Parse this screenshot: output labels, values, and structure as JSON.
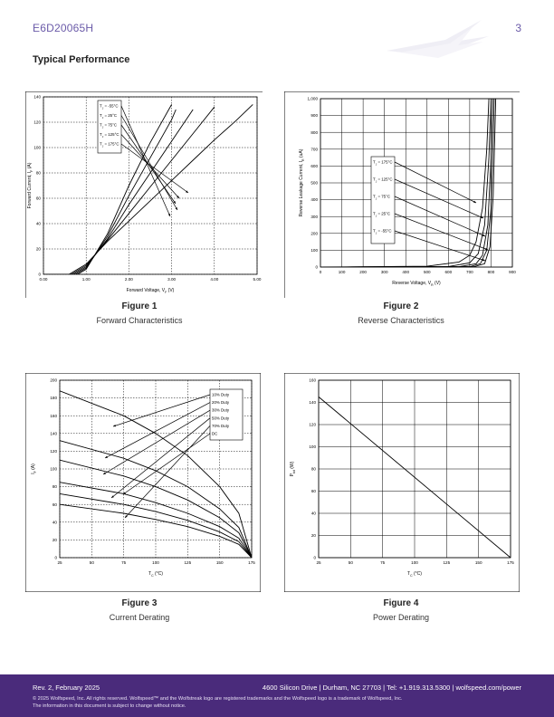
{
  "header": {
    "part_number": "E6D20065H",
    "page_number": "3"
  },
  "section_title": "Typical Performance",
  "figures": [
    {
      "title": "Figure 1",
      "subtitle": "Forward Characteristics"
    },
    {
      "title": "Figure 2",
      "subtitle": "Reverse Characteristics"
    },
    {
      "title": "Figure 3",
      "subtitle": "Current Derating"
    },
    {
      "title": "Figure 4",
      "subtitle": "Power Derating"
    }
  ],
  "chart_data": [
    {
      "type": "line",
      "xlabel": "Forward Voltage, V_F (V)",
      "ylabel": "Forward Current, I_F (A)",
      "xlim": [
        0,
        5
      ],
      "ylim": [
        0,
        140
      ],
      "xticks": [
        "0.00",
        "1.00",
        "2.00",
        "3.00",
        "4.00",
        "5.00"
      ],
      "yticks": [
        "0",
        "20",
        "40",
        "60",
        "80",
        "100",
        "120",
        "140"
      ],
      "series": [
        {
          "name": "T_J = -55°C",
          "x": [
            0.8,
            1.0,
            1.5,
            2.0,
            2.5,
            3.0
          ],
          "y": [
            0,
            4,
            32,
            70,
            104,
            134
          ]
        },
        {
          "name": "T_J = 25°C",
          "x": [
            0.75,
            1.0,
            1.5,
            2.0,
            2.5,
            3.0,
            3.1
          ],
          "y": [
            0,
            5,
            30,
            62,
            92,
            122,
            130
          ]
        },
        {
          "name": "T_J = 75°C",
          "x": [
            0.7,
            1.0,
            1.5,
            2.0,
            2.5,
            3.0,
            3.5
          ],
          "y": [
            0,
            6,
            28,
            55,
            80,
            105,
            130
          ]
        },
        {
          "name": "T_J = 125°C",
          "x": [
            0.65,
            1.0,
            1.5,
            2.0,
            2.5,
            3.0,
            3.5,
            4.0
          ],
          "y": [
            0,
            7,
            27,
            48,
            69,
            90,
            111,
            132
          ]
        },
        {
          "name": "T_J = 175°C",
          "x": [
            0.6,
            1.0,
            1.5,
            2.0,
            2.5,
            3.0,
            3.5,
            4.0,
            4.5,
            4.9
          ],
          "y": [
            0,
            8,
            26,
            42,
            58,
            74,
            90,
            106,
            121,
            134
          ]
        }
      ]
    },
    {
      "type": "line",
      "xlabel": "Reverse Voltage, V_R (V)",
      "ylabel": "Reverse Leakage Current, I_R (uA)",
      "xlim": [
        0,
        900
      ],
      "ylim": [
        0,
        1000
      ],
      "xticks": [
        "0",
        "100",
        "200",
        "300",
        "400",
        "500",
        "600",
        "700",
        "800",
        "900"
      ],
      "yticks": [
        "0",
        "100",
        "200",
        "300",
        "400",
        "500",
        "600",
        "700",
        "800",
        "900",
        "1,000"
      ],
      "series": [
        {
          "name": "T_J = 175°C",
          "x": [
            0,
            500,
            650,
            700,
            730,
            760,
            780,
            790
          ],
          "y": [
            0,
            5,
            30,
            70,
            150,
            350,
            700,
            1000
          ]
        },
        {
          "name": "T_J = 125°C",
          "x": [
            0,
            600,
            700,
            740,
            770,
            790,
            800
          ],
          "y": [
            0,
            3,
            25,
            80,
            250,
            650,
            1000
          ]
        },
        {
          "name": "T_J = 75°C",
          "x": [
            0,
            650,
            730,
            760,
            785,
            800,
            808
          ],
          "y": [
            0,
            2,
            20,
            70,
            250,
            650,
            1000
          ]
        },
        {
          "name": "T_J = 25°C",
          "x": [
            0,
            700,
            750,
            780,
            800,
            810,
            815
          ],
          "y": [
            0,
            2,
            20,
            100,
            350,
            750,
            1000
          ]
        },
        {
          "name": "T_J = -55°C",
          "x": [
            0,
            720,
            770,
            795,
            810,
            818,
            822
          ],
          "y": [
            0,
            2,
            20,
            120,
            420,
            800,
            1000
          ]
        }
      ]
    },
    {
      "type": "line",
      "xlabel": "T_C (°C)",
      "ylabel": "I_F (A)",
      "xlim": [
        25,
        175
      ],
      "ylim": [
        0,
        200
      ],
      "xticks": [
        "25",
        "50",
        "75",
        "100",
        "125",
        "150",
        "175"
      ],
      "yticks": [
        "0",
        "20",
        "40",
        "60",
        "80",
        "100",
        "120",
        "140",
        "160",
        "180",
        "200"
      ],
      "series": [
        {
          "name": "10% Duty",
          "x": [
            25,
            75,
            100,
            125,
            150,
            165,
            175
          ],
          "y": [
            188,
            160,
            140,
            115,
            80,
            50,
            0
          ]
        },
        {
          "name": "20% Duty",
          "x": [
            25,
            75,
            100,
            125,
            150,
            165,
            175
          ],
          "y": [
            132,
            112,
            98,
            80,
            55,
            34,
            0
          ]
        },
        {
          "name": "30% Duty",
          "x": [
            25,
            75,
            100,
            125,
            150,
            165,
            175
          ],
          "y": [
            110,
            92,
            80,
            65,
            45,
            28,
            0
          ]
        },
        {
          "name": "50% Duty",
          "x": [
            25,
            75,
            100,
            125,
            150,
            165,
            175
          ],
          "y": [
            85,
            72,
            62,
            50,
            35,
            22,
            0
          ]
        },
        {
          "name": "70% Duty",
          "x": [
            25,
            75,
            100,
            125,
            150,
            165,
            175
          ],
          "y": [
            72,
            60,
            52,
            42,
            29,
            18,
            0
          ]
        },
        {
          "name": "DC",
          "x": [
            25,
            75,
            100,
            125,
            150,
            165,
            175
          ],
          "y": [
            60,
            50,
            43,
            35,
            24,
            15,
            0
          ]
        }
      ]
    },
    {
      "type": "line",
      "xlabel": "T_C (°C)",
      "ylabel": "P_tot (W)",
      "xlim": [
        25,
        175
      ],
      "ylim": [
        0,
        160
      ],
      "xticks": [
        "25",
        "50",
        "75",
        "100",
        "125",
        "150",
        "175"
      ],
      "yticks": [
        "0",
        "20",
        "40",
        "60",
        "80",
        "100",
        "120",
        "140",
        "160"
      ],
      "series": [
        {
          "x": [
            25,
            175
          ],
          "y": [
            145,
            0
          ]
        }
      ]
    }
  ],
  "footer": {
    "revision": "Rev. 2, February 2025",
    "address": "4600 Silicon Drive | Durham, NC 27703 | Tel: +1.919.313.5300 | wolfspeed.com/power",
    "legal_line1": "© 2025 Wolfspeed, Inc. All rights reserved. Wolfspeed™ and the Wolfstreak logo are registered trademarks and the Wolfspeed logo is a trademark of Wolfspeed, Inc.",
    "legal_line2": "The information in this document is subject to change without notice."
  }
}
